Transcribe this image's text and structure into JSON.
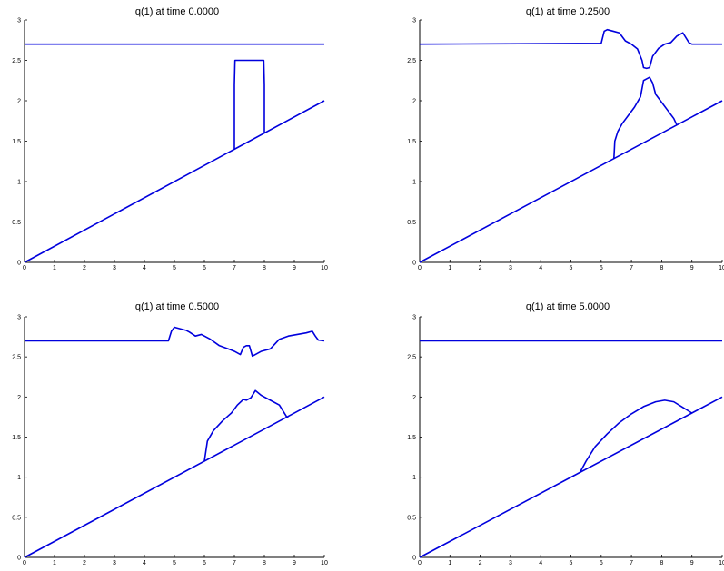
{
  "chart_data": [
    {
      "type": "line",
      "title": "q(1) at time   0.0000",
      "xlim": [
        0,
        10
      ],
      "ylim": [
        0,
        3
      ],
      "xticks": [
        "0",
        "1",
        "2",
        "3",
        "4",
        "5",
        "6",
        "7",
        "8",
        "9",
        "10"
      ],
      "yticks": [
        "0",
        "0.5",
        "1",
        "1.5",
        "2",
        "2.5",
        "3"
      ],
      "grid": false,
      "color": "#0000dd",
      "series": [
        {
          "x": [
            0,
            10
          ],
          "y": [
            2.7,
            2.7
          ]
        },
        {
          "x": [
            0,
            10
          ],
          "y": [
            0,
            2
          ]
        },
        {
          "x": [
            7.0,
            7.0,
            7.02,
            7.98,
            8.0,
            8.0
          ],
          "y": [
            1.4,
            2.2,
            2.5,
            2.5,
            2.2,
            1.6
          ]
        }
      ]
    },
    {
      "type": "line",
      "title": "q(1) at time   0.2500",
      "xlim": [
        0,
        10
      ],
      "ylim": [
        0,
        3
      ],
      "xticks": [
        "0",
        "1",
        "2",
        "3",
        "4",
        "5",
        "6",
        "7",
        "8",
        "9",
        "10"
      ],
      "yticks": [
        "0",
        "0.5",
        "1",
        "1.5",
        "2",
        "2.5",
        "3"
      ],
      "grid": false,
      "color": "#0000dd",
      "series": [
        {
          "x": [
            0,
            6.0,
            6.1,
            6.2,
            6.4,
            6.6,
            6.8,
            7.0,
            7.2,
            7.35,
            7.4,
            7.5,
            7.6,
            7.7,
            7.9,
            8.1,
            8.3,
            8.5,
            8.7,
            8.9,
            9.0,
            10
          ],
          "y": [
            2.7,
            2.71,
            2.86,
            2.88,
            2.86,
            2.84,
            2.74,
            2.7,
            2.64,
            2.5,
            2.41,
            2.4,
            2.41,
            2.55,
            2.65,
            2.7,
            2.72,
            2.8,
            2.84,
            2.72,
            2.7,
            2.7
          ]
        },
        {
          "x": [
            0,
            10
          ],
          "y": [
            0,
            2
          ]
        },
        {
          "x": [
            6.42,
            6.45,
            6.55,
            6.7,
            6.9,
            7.1,
            7.3,
            7.4,
            7.5,
            7.6,
            7.7,
            7.8,
            8.0,
            8.2,
            8.4,
            8.5
          ],
          "y": [
            1.28,
            1.5,
            1.62,
            1.72,
            1.82,
            1.92,
            2.05,
            2.25,
            2.27,
            2.29,
            2.22,
            2.08,
            1.98,
            1.88,
            1.78,
            1.7
          ]
        }
      ]
    },
    {
      "type": "line",
      "title": "q(1) at time   0.5000",
      "xlim": [
        0,
        10
      ],
      "ylim": [
        0,
        3
      ],
      "xticks": [
        "0",
        "1",
        "2",
        "3",
        "4",
        "5",
        "6",
        "7",
        "8",
        "9",
        "10"
      ],
      "yticks": [
        "0",
        "0.5",
        "1",
        "1.5",
        "2",
        "2.5",
        "3"
      ],
      "grid": false,
      "color": "#0000dd",
      "series": [
        {
          "x": [
            0,
            4.8,
            4.9,
            5.0,
            5.4,
            5.5,
            5.7,
            5.9,
            6.2,
            6.5,
            6.8,
            7.0,
            7.2,
            7.3,
            7.4,
            7.5,
            7.6,
            7.7,
            7.9,
            8.2,
            8.5,
            8.8,
            9.1,
            9.4,
            9.6,
            9.7,
            9.8,
            10
          ],
          "y": [
            2.7,
            2.7,
            2.82,
            2.87,
            2.83,
            2.81,
            2.76,
            2.78,
            2.72,
            2.64,
            2.6,
            2.57,
            2.53,
            2.62,
            2.64,
            2.64,
            2.51,
            2.53,
            2.57,
            2.6,
            2.72,
            2.76,
            2.78,
            2.8,
            2.82,
            2.76,
            2.71,
            2.7
          ]
        },
        {
          "x": [
            0,
            10
          ],
          "y": [
            0,
            2
          ]
        },
        {
          "x": [
            6.0,
            6.1,
            6.3,
            6.6,
            6.9,
            7.1,
            7.3,
            7.4,
            7.55,
            7.7,
            7.9,
            8.2,
            8.5,
            8.75,
            8.8
          ],
          "y": [
            1.2,
            1.45,
            1.58,
            1.7,
            1.8,
            1.9,
            1.97,
            1.96,
            1.99,
            2.08,
            2.02,
            1.96,
            1.9,
            1.75,
            1.75
          ]
        }
      ]
    },
    {
      "type": "line",
      "title": "q(1) at time   5.0000",
      "xlim": [
        0,
        10
      ],
      "ylim": [
        0,
        3
      ],
      "xticks": [
        "0",
        "1",
        "2",
        "3",
        "4",
        "5",
        "6",
        "7",
        "8",
        "9",
        "10"
      ],
      "yticks": [
        "0",
        "0.5",
        "1",
        "1.5",
        "2",
        "2.5",
        "3"
      ],
      "grid": false,
      "color": "#0000dd",
      "series": [
        {
          "x": [
            0,
            10
          ],
          "y": [
            2.7,
            2.7
          ]
        },
        {
          "x": [
            0,
            10
          ],
          "y": [
            0,
            2
          ]
        },
        {
          "x": [
            5.3,
            5.5,
            5.8,
            6.2,
            6.6,
            7.0,
            7.4,
            7.8,
            8.1,
            8.4,
            8.7,
            9.0
          ],
          "y": [
            1.06,
            1.2,
            1.38,
            1.54,
            1.68,
            1.79,
            1.88,
            1.94,
            1.96,
            1.94,
            1.87,
            1.8
          ]
        }
      ]
    }
  ]
}
